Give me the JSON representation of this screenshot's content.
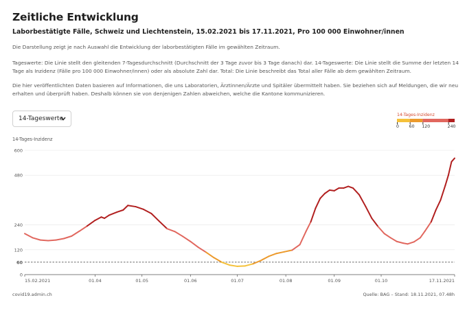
{
  "header": {
    "title": "Zeitliche Entwicklung",
    "subtitle": "Laborbestätigte Fälle, Schweiz und Liechtenstein, 15.02.2021 bis 17.11.2021, Pro 100 000 Einwohner/innen"
  },
  "description": {
    "p1": "Die Darstellung zeigt je nach Auswahl die Entwicklung der laborbestätigten Fälle im gewählten Zeitraum.",
    "p2": "Tageswerte: Die Linie stellt den gleitenden 7-Tagesdurchschnitt (Durchschnitt der 3 Tage zuvor bis 3 Tage danach) dar. 14-Tageswerte: Die Linie stellt die Summe der letzten 14 Tage als Inzidenz (Fälle pro 100 000 Einwohner/innen) oder als absolute Zahl dar. Total: Die Linie beschreibt das Total aller Fälle ab dem gewählten Zeitraum.",
    "p3": "Die hier veröffentlichten Daten basieren auf Informationen, die uns Laboratorien, Ärztinnen/Ärzte und Spitäler übermittelt haben. Sie beziehen sich auf Meldungen, die wir neu erhalten und überprüft haben. Deshalb können sie von denjenigen Zahlen abweichen, welche die Kantone kommunizieren."
  },
  "selector": {
    "value": "14-Tageswerte",
    "icon": "chevron-down-icon"
  },
  "legend": {
    "title": "14-Tages-Inzidenz",
    "labels": [
      "0",
      "60",
      "120",
      "240"
    ],
    "thresholds": [
      0,
      60,
      120,
      240
    ],
    "colors": [
      "#f5c13a",
      "#ec9a2c",
      "#e1675e",
      "#b11f1f"
    ]
  },
  "footer": {
    "left": "covid19.admin.ch",
    "right": "Quelle: BAG – Stand: 18.11.2021, 07.48h"
  },
  "chart_data": {
    "type": "line",
    "ylabel": "14-Tages-Inzidenz",
    "ylim": [
      0,
      600
    ],
    "yticks": [
      0,
      120,
      240,
      480,
      600
    ],
    "reference_line": {
      "value": 60,
      "label": "60",
      "style": "dashed"
    },
    "xlim": [
      "2021-02-15",
      "2021-11-17"
    ],
    "xticks": [
      {
        "date": "2021-02-15",
        "label": "15.02.2021"
      },
      {
        "date": "2021-04-01",
        "label": "01.04"
      },
      {
        "date": "2021-05-01",
        "label": "01.05"
      },
      {
        "date": "2021-06-01",
        "label": "01.06"
      },
      {
        "date": "2021-07-01",
        "label": "01.07"
      },
      {
        "date": "2021-08-01",
        "label": "01.08"
      },
      {
        "date": "2021-09-01",
        "label": "01.09"
      },
      {
        "date": "2021-10-01",
        "label": "01.10"
      },
      {
        "date": "2021-11-17",
        "label": "17.11.2021"
      }
    ],
    "series": [
      {
        "points": [
          [
            "2021-02-15",
            198
          ],
          [
            "2021-02-20",
            178
          ],
          [
            "2021-02-25",
            167
          ],
          [
            "2021-03-02",
            164
          ],
          [
            "2021-03-07",
            167
          ],
          [
            "2021-03-12",
            174
          ],
          [
            "2021-03-17",
            186
          ],
          [
            "2021-03-22",
            210
          ],
          [
            "2021-03-27",
            235
          ],
          [
            "2021-04-01",
            262
          ],
          [
            "2021-04-05",
            278
          ],
          [
            "2021-04-07",
            272
          ],
          [
            "2021-04-10",
            287
          ],
          [
            "2021-04-15",
            302
          ],
          [
            "2021-04-19",
            312
          ],
          [
            "2021-04-22",
            334
          ],
          [
            "2021-04-27",
            328
          ],
          [
            "2021-05-02",
            315
          ],
          [
            "2021-05-07",
            295
          ],
          [
            "2021-05-12",
            258
          ],
          [
            "2021-05-17",
            222
          ],
          [
            "2021-05-22",
            208
          ],
          [
            "2021-05-27",
            185
          ],
          [
            "2021-06-01",
            160
          ],
          [
            "2021-06-06",
            132
          ],
          [
            "2021-06-11",
            108
          ],
          [
            "2021-06-16",
            82
          ],
          [
            "2021-06-21",
            60
          ],
          [
            "2021-06-26",
            46
          ],
          [
            "2021-07-01",
            40
          ],
          [
            "2021-07-06",
            42
          ],
          [
            "2021-07-11",
            52
          ],
          [
            "2021-07-16",
            68
          ],
          [
            "2021-07-21",
            88
          ],
          [
            "2021-07-26",
            102
          ],
          [
            "2021-07-31",
            110
          ],
          [
            "2021-08-05",
            118
          ],
          [
            "2021-08-10",
            145
          ],
          [
            "2021-08-14",
            210
          ],
          [
            "2021-08-17",
            255
          ],
          [
            "2021-08-20",
            320
          ],
          [
            "2021-08-23",
            368
          ],
          [
            "2021-08-26",
            392
          ],
          [
            "2021-08-29",
            408
          ],
          [
            "2021-09-01",
            405
          ],
          [
            "2021-09-04",
            418
          ],
          [
            "2021-09-07",
            418
          ],
          [
            "2021-09-10",
            426
          ],
          [
            "2021-09-13",
            418
          ],
          [
            "2021-09-17",
            385
          ],
          [
            "2021-09-21",
            330
          ],
          [
            "2021-09-25",
            272
          ],
          [
            "2021-09-29",
            232
          ],
          [
            "2021-10-03",
            198
          ],
          [
            "2021-10-07",
            178
          ],
          [
            "2021-10-11",
            160
          ],
          [
            "2021-10-15",
            152
          ],
          [
            "2021-10-18",
            148
          ],
          [
            "2021-10-22",
            158
          ],
          [
            "2021-10-26",
            178
          ],
          [
            "2021-10-29",
            210
          ],
          [
            "2021-11-02",
            255
          ],
          [
            "2021-11-05",
            312
          ],
          [
            "2021-11-08",
            360
          ],
          [
            "2021-11-11",
            430
          ],
          [
            "2021-11-13",
            480
          ],
          [
            "2021-11-15",
            545
          ],
          [
            "2021-11-17",
            562
          ]
        ]
      }
    ]
  }
}
